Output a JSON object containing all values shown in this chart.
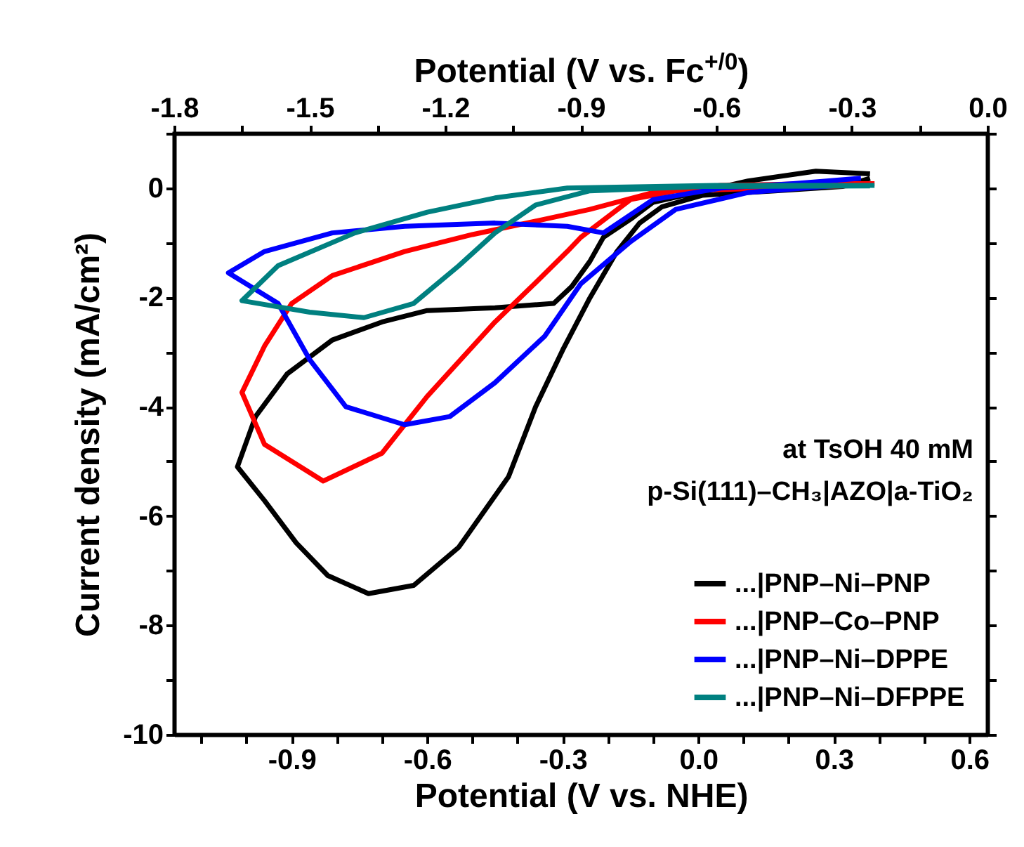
{
  "chart_data": {
    "type": "line",
    "xlabel": "Potential (V vs. NHE)",
    "ylabel": "Current density (mA/cm²)",
    "x2label": "Potential (V vs. Fc$^{+/0}$)",
    "xlim": [
      -1.16,
      0.64
    ],
    "xticks": [
      {
        "value": -1.1,
        "label": null
      },
      {
        "value": -1.0,
        "label": null
      },
      {
        "value": -0.9,
        "label": "-0.9"
      },
      {
        "value": -0.8,
        "label": null
      },
      {
        "value": -0.7,
        "label": null
      },
      {
        "value": -0.6,
        "label": "-0.6"
      },
      {
        "value": -0.5,
        "label": null
      },
      {
        "value": -0.4,
        "label": null
      },
      {
        "value": -0.3,
        "label": "-0.3"
      },
      {
        "value": -0.2,
        "label": null
      },
      {
        "value": -0.1,
        "label": null
      },
      {
        "value": 0,
        "label": "0.0"
      },
      {
        "value": 0.1,
        "label": null
      },
      {
        "value": 0.2,
        "label": null
      },
      {
        "value": 0.3,
        "label": "0.3"
      },
      {
        "value": 0.4,
        "label": null
      },
      {
        "value": 0.5,
        "label": null
      },
      {
        "value": 0.6,
        "label": "0.6"
      }
    ],
    "x2lim": [
      -1.8,
      0.0
    ],
    "x2ticks": [
      {
        "value": -1.8,
        "label": "-1.8"
      },
      {
        "value": -1.65,
        "label": null
      },
      {
        "value": -1.5,
        "label": "-1.5"
      },
      {
        "value": -1.35,
        "label": null
      },
      {
        "value": -1.2,
        "label": "-1.2"
      },
      {
        "value": -1.05,
        "label": null
      },
      {
        "value": -0.9,
        "label": "-0.9"
      },
      {
        "value": -0.75,
        "label": null
      },
      {
        "value": -0.6,
        "label": "-0.6"
      },
      {
        "value": -0.45,
        "label": null
      },
      {
        "value": -0.3,
        "label": "-0.3"
      },
      {
        "value": -0.15,
        "label": null
      },
      {
        "value": 0,
        "label": "0.0"
      }
    ],
    "ylim": [
      -10,
      1
    ],
    "yticks": [
      -10,
      {
        "value": -9,
        "label": null
      },
      -8,
      {
        "value": -7,
        "label": null
      },
      -6,
      {
        "value": -5,
        "label": null
      },
      -4,
      {
        "value": -3,
        "label": null
      },
      -2,
      {
        "value": -1,
        "label": null
      },
      0,
      {
        "value": 1,
        "label": null
      }
    ],
    "legend": "bottom right",
    "grid": false,
    "annotations": [
      "at TsOH 40 mM",
      "p-Si(111)–CH₃|AZO|a-TiO₂"
    ],
    "series": [
      {
        "name": "...|PNP–Ni–PNP",
        "color": "#000000",
        "x": [
          0.38,
          0.26,
          0.11,
          -0.1,
          -0.15,
          -0.21,
          -0.24,
          -0.28,
          -0.32,
          -0.45,
          -0.6,
          -0.7,
          -0.81,
          -0.91,
          -0.98,
          -1.02,
          -0.96,
          -0.89,
          -0.82,
          -0.73,
          -0.63,
          -0.53,
          -0.42,
          -0.36,
          -0.3,
          -0.24,
          -0.18,
          -0.13,
          -0.08,
          0.01,
          0.17,
          0.32,
          0.38
        ],
        "values": [
          0.26,
          0.31,
          0.13,
          -0.26,
          -0.57,
          -0.9,
          -1.34,
          -1.8,
          -2.11,
          -2.19,
          -2.24,
          -2.45,
          -2.78,
          -3.4,
          -4.18,
          -5.1,
          -5.72,
          -6.49,
          -7.09,
          -7.42,
          -7.27,
          -6.57,
          -5.28,
          -4.0,
          -2.96,
          -2.01,
          -1.16,
          -0.64,
          -0.34,
          -0.13,
          -0.05,
          0.03,
          0.18
        ]
      },
      {
        "name": "...|PNP–Co–PNP",
        "color": "#ff0000",
        "x": [
          0.39,
          0.26,
          0.05,
          -0.1,
          -0.24,
          -0.34,
          -0.5,
          -0.65,
          -0.81,
          -0.9,
          -0.96,
          -1.01,
          -0.96,
          -0.83,
          -0.7,
          -0.6,
          -0.45,
          -0.36,
          -0.29,
          -0.26,
          -0.15,
          -0.05,
          0.16,
          0.36
        ],
        "values": [
          0.08,
          0.08,
          0.05,
          -0.08,
          -0.39,
          -0.57,
          -0.85,
          -1.16,
          -1.6,
          -2.11,
          -2.89,
          -3.74,
          -4.69,
          -5.36,
          -4.85,
          -3.81,
          -2.45,
          -1.73,
          -1.16,
          -0.9,
          -0.21,
          -0.05,
          0.0,
          0.05
        ]
      },
      {
        "name": "...|PNP–Ni–DPPE",
        "color": "#0000ff",
        "x": [
          0.36,
          0.21,
          0.05,
          -0.1,
          -0.21,
          -0.29,
          -0.45,
          -0.65,
          -0.81,
          -0.96,
          -1.04,
          -0.93,
          -0.86,
          -0.78,
          -0.65,
          -0.55,
          -0.45,
          -0.34,
          -0.26,
          -0.15,
          -0.05,
          0.11,
          0.31
        ],
        "values": [
          0.18,
          0.08,
          0.0,
          -0.21,
          -0.82,
          -0.7,
          -0.64,
          -0.7,
          -0.82,
          -1.16,
          -1.55,
          -2.11,
          -3.14,
          -4.0,
          -4.33,
          -4.18,
          -3.56,
          -2.71,
          -1.75,
          -0.98,
          -0.39,
          -0.08,
          0.05
        ]
      },
      {
        "name": "...|PNP–Ni–DFPPE",
        "color": "#008080",
        "x": [
          0.39,
          0.05,
          -0.29,
          -0.45,
          -0.6,
          -0.76,
          -0.93,
          -1.01,
          -0.86,
          -0.74,
          -0.63,
          -0.53,
          -0.45,
          -0.36,
          -0.24,
          0.01,
          0.38
        ],
        "values": [
          0.05,
          0.05,
          0.0,
          -0.18,
          -0.44,
          -0.82,
          -1.42,
          -2.06,
          -2.27,
          -2.37,
          -2.11,
          -1.42,
          -0.82,
          -0.31,
          -0.05,
          0.03,
          0.04
        ]
      }
    ]
  }
}
